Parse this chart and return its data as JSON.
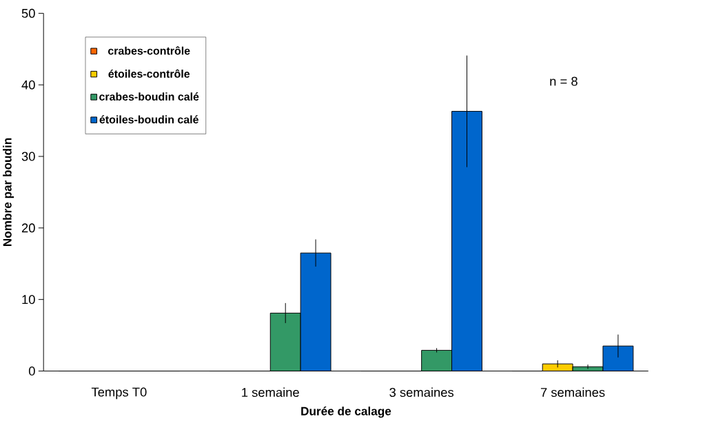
{
  "chart_data": {
    "type": "bar",
    "xlabel": "Durée de calage",
    "ylabel": "Nombre par boudin",
    "categories": [
      "Temps T0",
      "1 semaine",
      "3 semaines",
      "7 semaines"
    ],
    "series": [
      {
        "name": "crabes-contrôle",
        "color": "#ff6600",
        "values": [
          0,
          0,
          0,
          0
        ]
      },
      {
        "name": "étoiles-contrôle",
        "color": "#ffcc00",
        "values": [
          0,
          0,
          0,
          1.0
        ],
        "errors": [
          null,
          null,
          null,
          0.5
        ]
      },
      {
        "name": "crabes-boudin calé",
        "color": "#339966",
        "values": [
          0,
          8.1,
          2.9,
          0.6
        ],
        "errors": [
          null,
          1.4,
          0.3,
          0.3
        ]
      },
      {
        "name": "étoiles-boudin calé",
        "color": "#0066cc",
        "values": [
          0,
          16.5,
          36.3,
          3.5
        ],
        "errors": [
          null,
          1.9,
          7.8,
          1.6
        ]
      }
    ],
    "ylim": [
      0,
      50
    ],
    "yticks": [
      0,
      10,
      20,
      30,
      40,
      50
    ],
    "legend": "top left",
    "grid": false,
    "annotations": [
      "n = 8"
    ]
  }
}
